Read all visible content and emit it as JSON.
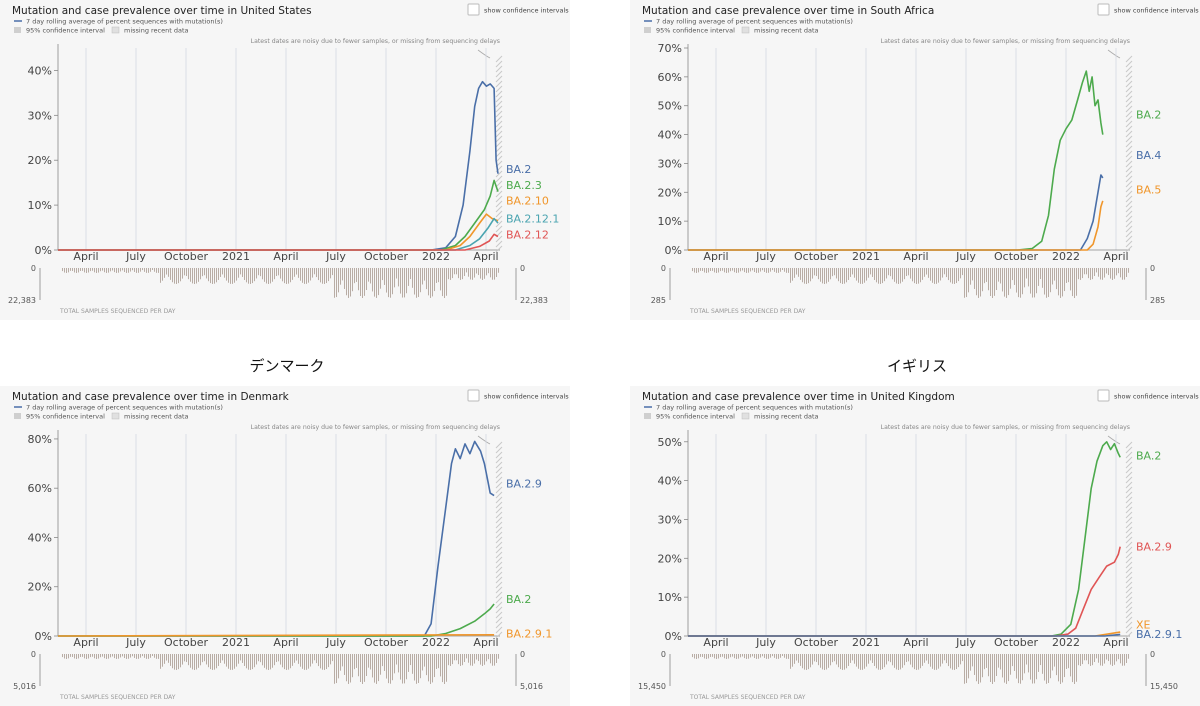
{
  "captions": {
    "denmark": "デンマーク",
    "uk": "イギリス"
  },
  "ui": {
    "legend_line": "7 day rolling average of percent sequences with mutation(s)",
    "legend_ci": "95% confidence interval",
    "legend_missing": "missing recent data",
    "show_ci": "show confidence intervals",
    "noisy_note": "Latest dates are noisy due to fewer samples, or missing from sequencing delays",
    "samples_label": "TOTAL SAMPLES SEQUENCED PER DAY"
  },
  "colors": {
    "blue": "#4a6fa8",
    "green": "#4daa4d",
    "orange": "#f0962b",
    "red": "#e05555",
    "teal": "#4aa4b0",
    "hatch": "#c8c8c8",
    "bars": "#b8aca4"
  },
  "chart_data": [
    {
      "type": "line",
      "title": "Mutation and case prevalence over time in United States",
      "x_ticks": [
        "April",
        "July",
        "October",
        "2021",
        "April",
        "July",
        "October",
        "2022",
        "April"
      ],
      "y_ticks": [
        "0%",
        "10%",
        "20%",
        "30%",
        "40%"
      ],
      "ylim": [
        0,
        45
      ],
      "samples_max": "22,383",
      "samples_zero": "0",
      "series": [
        {
          "name": "BA.2",
          "color": "#4a6fa8",
          "label_y": 18,
          "points": [
            [
              0,
              0
            ],
            [
              385,
              0
            ],
            [
              400,
              0.5
            ],
            [
              410,
              3
            ],
            [
              418,
              10
            ],
            [
              425,
              22
            ],
            [
              430,
              32
            ],
            [
              434,
              36
            ],
            [
              438,
              37.5
            ],
            [
              442,
              36.5
            ],
            [
              446,
              37
            ],
            [
              450,
              36
            ],
            [
              452,
              20
            ],
            [
              454,
              17
            ]
          ]
        },
        {
          "name": "BA.2.3",
          "color": "#4daa4d",
          "label_y": 14.5,
          "points": [
            [
              0,
              0
            ],
            [
              395,
              0
            ],
            [
              410,
              1
            ],
            [
              420,
              3
            ],
            [
              430,
              6
            ],
            [
              440,
              9
            ],
            [
              446,
              12
            ],
            [
              450,
              15.5
            ],
            [
              454,
              13
            ]
          ]
        },
        {
          "name": "BA.2.10",
          "color": "#f0962b",
          "label_y": 11,
          "points": [
            [
              0,
              0
            ],
            [
              400,
              0
            ],
            [
              415,
              1
            ],
            [
              425,
              3
            ],
            [
              435,
              6
            ],
            [
              442,
              8
            ],
            [
              448,
              7
            ],
            [
              454,
              6.5
            ]
          ]
        },
        {
          "name": "BA.2.12.1",
          "color": "#4aa4b0",
          "label_y": 7,
          "points": [
            [
              0,
              0
            ],
            [
              410,
              0
            ],
            [
              425,
              1
            ],
            [
              435,
              2.5
            ],
            [
              444,
              5
            ],
            [
              450,
              7
            ],
            [
              454,
              6
            ]
          ]
        },
        {
          "name": "BA.2.12",
          "color": "#e05555",
          "label_y": 3.5,
          "points": [
            [
              0,
              0
            ],
            [
              420,
              0
            ],
            [
              435,
              0.8
            ],
            [
              445,
              2
            ],
            [
              450,
              3.5
            ],
            [
              454,
              3
            ]
          ]
        }
      ]
    },
    {
      "type": "line",
      "title": "Mutation and case prevalence over time in South Africa",
      "x_ticks": [
        "April",
        "July",
        "October",
        "2021",
        "April",
        "July",
        "October",
        "2022",
        "April"
      ],
      "y_ticks": [
        "0%",
        "10%",
        "20%",
        "30%",
        "40%",
        "50%",
        "60%",
        "70%"
      ],
      "ylim": [
        0,
        70
      ],
      "samples_max": "285",
      "samples_zero": "0",
      "series": [
        {
          "name": "BA.2",
          "color": "#4daa4d",
          "label_y": 47,
          "points": [
            [
              0,
              0
            ],
            [
              340,
              0
            ],
            [
              355,
              0.5
            ],
            [
              365,
              3
            ],
            [
              372,
              12
            ],
            [
              378,
              28
            ],
            [
              384,
              38
            ],
            [
              390,
              42
            ],
            [
              396,
              45
            ],
            [
              402,
              52
            ],
            [
              407,
              58
            ],
            [
              411,
              62
            ],
            [
              414,
              55
            ],
            [
              417,
              60
            ],
            [
              420,
              50
            ],
            [
              423,
              52
            ],
            [
              426,
              44
            ],
            [
              428,
              40
            ]
          ]
        },
        {
          "name": "BA.4",
          "color": "#4a6fa8",
          "label_y": 33,
          "points": [
            [
              0,
              0
            ],
            [
              405,
              0
            ],
            [
              412,
              4
            ],
            [
              418,
              10
            ],
            [
              423,
              20
            ],
            [
              426,
              26
            ],
            [
              428,
              25
            ]
          ]
        },
        {
          "name": "BA.5",
          "color": "#f0962b",
          "label_y": 21,
          "points": [
            [
              0,
              0
            ],
            [
              412,
              0
            ],
            [
              418,
              2
            ],
            [
              423,
              8
            ],
            [
              426,
              15
            ],
            [
              428,
              17
            ]
          ]
        }
      ]
    },
    {
      "type": "line",
      "title": "Mutation and case prevalence over time in Denmark",
      "x_ticks": [
        "April",
        "July",
        "October",
        "2021",
        "April",
        "July",
        "October",
        "2022",
        "April"
      ],
      "y_ticks": [
        "0%",
        "20%",
        "40%",
        "60%",
        "80%"
      ],
      "ylim": [
        0,
        82
      ],
      "samples_max": "5,016",
      "samples_zero": "0",
      "series": [
        {
          "name": "BA.2.9",
          "color": "#4a6fa8",
          "label_y": 62,
          "points": [
            [
              0,
              0
            ],
            [
              378,
              0
            ],
            [
              385,
              5
            ],
            [
              392,
              28
            ],
            [
              400,
              52
            ],
            [
              406,
              70
            ],
            [
              410,
              76
            ],
            [
              415,
              72
            ],
            [
              420,
              78
            ],
            [
              425,
              74
            ],
            [
              430,
              79
            ],
            [
              436,
              75
            ],
            [
              440,
              70
            ],
            [
              444,
              62
            ],
            [
              446,
              58
            ],
            [
              450,
              57
            ]
          ]
        },
        {
          "name": "BA.2",
          "color": "#4daa4d",
          "label_y": 15,
          "points": [
            [
              0,
              0
            ],
            [
              385,
              0
            ],
            [
              400,
              1
            ],
            [
              415,
              3
            ],
            [
              430,
              6
            ],
            [
              440,
              9
            ],
            [
              446,
              11
            ],
            [
              450,
              13
            ]
          ]
        },
        {
          "name": "BA.2.9.1",
          "color": "#f0962b",
          "label_y": 1,
          "points": [
            [
              0,
              0
            ],
            [
              450,
              0.5
            ]
          ]
        }
      ]
    },
    {
      "type": "line",
      "title": "Mutation and case prevalence over time in United Kingdom",
      "x_ticks": [
        "April",
        "July",
        "October",
        "2021",
        "April",
        "July",
        "October",
        "2022",
        "April"
      ],
      "y_ticks": [
        "0%",
        "10%",
        "20%",
        "30%",
        "40%",
        "50%"
      ],
      "ylim": [
        0,
        52
      ],
      "samples_max": "15,450",
      "samples_zero": "0",
      "series": [
        {
          "name": "BA.2",
          "color": "#4daa4d",
          "label_y": 46.5,
          "points": [
            [
              0,
              0
            ],
            [
              375,
              0
            ],
            [
              385,
              0.5
            ],
            [
              395,
              3
            ],
            [
              403,
              12
            ],
            [
              410,
              26
            ],
            [
              416,
              38
            ],
            [
              422,
              45
            ],
            [
              428,
              49
            ],
            [
              432,
              50
            ],
            [
              436,
              48
            ],
            [
              440,
              49.5
            ],
            [
              444,
              47
            ],
            [
              446,
              46
            ]
          ]
        },
        {
          "name": "BA.2.9",
          "color": "#e05555",
          "label_y": 23,
          "points": [
            [
              0,
              0
            ],
            [
              380,
              0
            ],
            [
              392,
              0.5
            ],
            [
              400,
              2
            ],
            [
              408,
              7
            ],
            [
              416,
              12
            ],
            [
              424,
              15
            ],
            [
              432,
              18
            ],
            [
              440,
              19
            ],
            [
              444,
              21
            ],
            [
              446,
              23
            ]
          ]
        },
        {
          "name": "XE",
          "color": "#f0962b",
          "label_y": 3,
          "points": [
            [
              0,
              0
            ],
            [
              420,
              0
            ],
            [
              446,
              1
            ]
          ]
        },
        {
          "name": "BA.2.9.1",
          "color": "#4a6fa8",
          "label_y": 0.5,
          "points": [
            [
              0,
              0
            ],
            [
              430,
              0
            ],
            [
              446,
              0.4
            ]
          ]
        }
      ]
    }
  ]
}
